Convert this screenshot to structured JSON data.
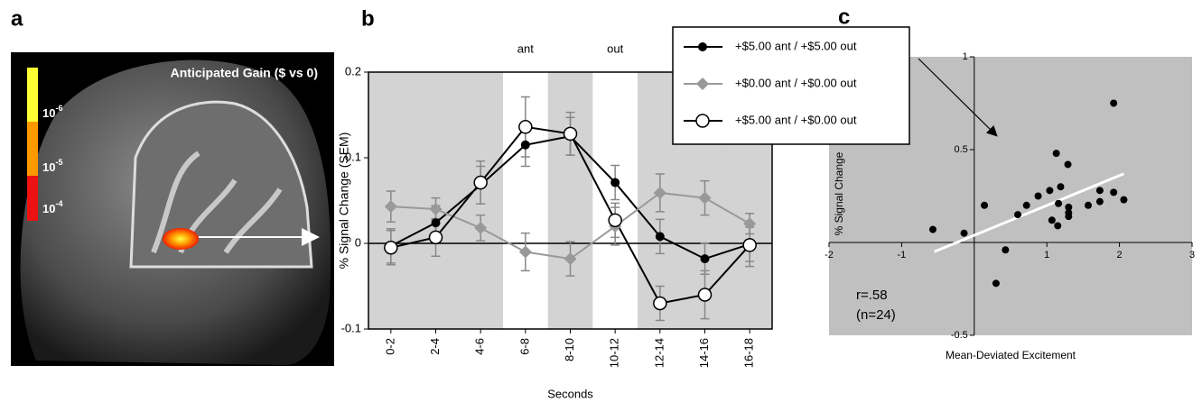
{
  "panel_a": {
    "label": "a",
    "title": "Anticipated Gain ($ vs 0)",
    "colorbar": [
      {
        "base": "10",
        "exponent": "-6",
        "color": "#ffff33"
      },
      {
        "base": "10",
        "exponent": "-5",
        "color": "#ff9900"
      },
      {
        "base": "10",
        "exponent": "-4",
        "color": "#ee1111"
      }
    ]
  },
  "chart_data": [
    {
      "type": "line",
      "panel_label": "b",
      "categories": [
        "0-2",
        "2-4",
        "4-6",
        "6-8",
        "8-10",
        "10-12",
        "12-14",
        "14-16",
        "16-18"
      ],
      "xlabel": "Seconds",
      "ylabel": "% Signal Change (SEM)",
      "ylim": [
        -0.1,
        0.2
      ],
      "yticks": [
        -0.1,
        0,
        0.1,
        0.2
      ],
      "annotations": [
        {
          "text": "ant",
          "category": "6-8"
        },
        {
          "text": "out",
          "category": "10-12"
        }
      ],
      "series": [
        {
          "name": "+$5.00 ant / +$5.00 out",
          "color": "#000000",
          "marker": "filled-circle",
          "values": [
            -0.003,
            0.024,
            0.068,
            0.115,
            0.125,
            0.071,
            0.008,
            -0.018,
            -0.001
          ],
          "errors": [
            0.02,
            0.02,
            0.022,
            0.025,
            0.022,
            0.02,
            0.02,
            0.018,
            0.02
          ]
        },
        {
          "name": "+$0.00 ant / +$0.00 out",
          "color": "#999999",
          "marker": "diamond",
          "values": [
            0.043,
            0.04,
            0.018,
            -0.01,
            -0.018,
            0.02,
            0.059,
            0.053,
            0.023
          ],
          "errors": [
            0.018,
            0.013,
            0.015,
            0.022,
            0.02,
            0.022,
            0.022,
            0.02,
            0.012
          ]
        },
        {
          "name": "+$5.00 ant / +$0.00 out",
          "color": "#000000",
          "marker": "open-circle",
          "values": [
            -0.005,
            0.007,
            0.071,
            0.136,
            0.128,
            0.027,
            -0.07,
            -0.06,
            -0.002
          ],
          "errors": [
            0.02,
            0.022,
            0.025,
            0.035,
            0.025,
            0.02,
            0.02,
            0.028,
            0.025
          ]
        }
      ]
    },
    {
      "type": "scatter",
      "panel_label": "c",
      "xlabel": "Mean-Deviated Excitement",
      "ylabel": "% Signal Change",
      "xlim": [
        -2,
        3
      ],
      "ylim": [
        -0.5,
        1
      ],
      "xticks": [
        -2,
        -1,
        1,
        2,
        3
      ],
      "yticks": [
        -0.5,
        0.5,
        1
      ],
      "color": "#000000",
      "x": [
        -0.57,
        -0.14,
        0.14,
        0.43,
        0.3,
        0.6,
        0.72,
        0.88,
        1.04,
        1.13,
        1.29,
        1.16,
        1.15,
        1.3,
        1.3,
        1.3,
        1.57,
        1.73,
        1.73,
        1.92,
        1.92,
        2.06,
        1.19,
        1.07
      ],
      "values": [
        0.07,
        0.05,
        0.2,
        -0.04,
        -0.22,
        0.15,
        0.2,
        0.25,
        0.28,
        0.48,
        0.42,
        0.21,
        0.09,
        0.19,
        0.14,
        0.16,
        0.2,
        0.22,
        0.28,
        0.75,
        0.27,
        0.23,
        0.3,
        0.12
      ],
      "fit": {
        "x": [
          -0.55,
          2.06
        ],
        "y": [
          -0.05,
          0.37
        ],
        "color": "#ffffff"
      },
      "annotations": [
        "r=.58",
        "(n=24)"
      ]
    }
  ]
}
